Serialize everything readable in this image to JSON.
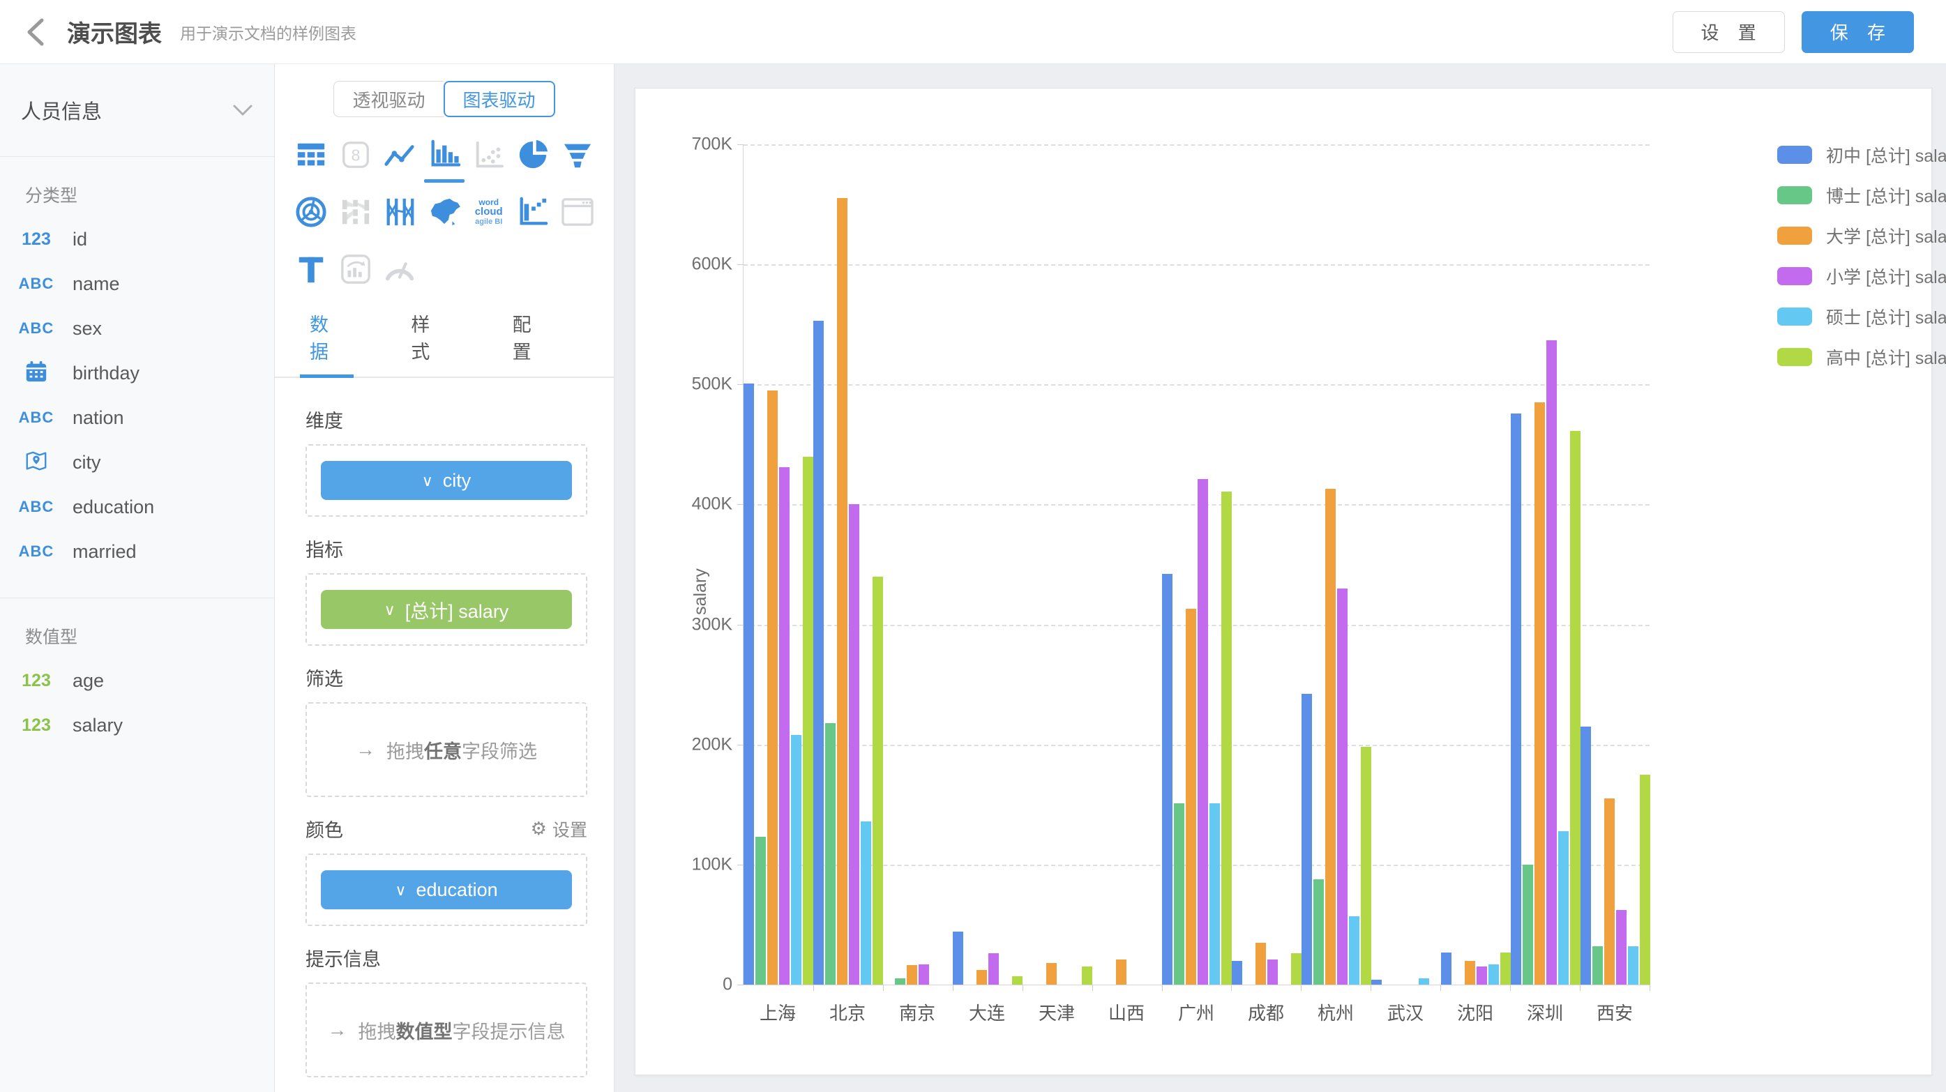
{
  "header": {
    "title": "演示图表",
    "subtitle": "用于演示文档的样例图表",
    "settings_label": "设 置",
    "save_label": "保 存"
  },
  "sidebar": {
    "dataset_name": "人员信息",
    "groups": [
      {
        "label": "分类型",
        "icon_color": "blue",
        "items": [
          {
            "type": "number",
            "icon_label": "123",
            "label": "id"
          },
          {
            "type": "string",
            "icon_label": "ABC",
            "label": "name"
          },
          {
            "type": "string",
            "icon_label": "ABC",
            "label": "sex"
          },
          {
            "type": "date",
            "icon_label": "calendar",
            "label": "birthday"
          },
          {
            "type": "string",
            "icon_label": "ABC",
            "label": "nation"
          },
          {
            "type": "geo",
            "icon_label": "map",
            "label": "city"
          },
          {
            "type": "string",
            "icon_label": "ABC",
            "label": "education"
          },
          {
            "type": "string",
            "icon_label": "ABC",
            "label": "married"
          }
        ]
      },
      {
        "label": "数值型",
        "icon_color": "green",
        "items": [
          {
            "type": "number",
            "icon_label": "123",
            "label": "age"
          },
          {
            "type": "number",
            "icon_label": "123",
            "label": "salary"
          }
        ]
      }
    ]
  },
  "panel": {
    "mode_tabs": [
      {
        "label": "透视驱动",
        "active": false
      },
      {
        "label": "图表驱动",
        "active": true
      }
    ],
    "chart_types": [
      {
        "name": "table",
        "state": "normal"
      },
      {
        "name": "number-card",
        "state": "disabled"
      },
      {
        "name": "line-chart",
        "state": "normal"
      },
      {
        "name": "bar-chart",
        "state": "selected"
      },
      {
        "name": "scatter",
        "state": "disabled"
      },
      {
        "name": "pie",
        "state": "normal"
      },
      {
        "name": "funnel",
        "state": "normal"
      },
      {
        "name": "radar",
        "state": "normal"
      },
      {
        "name": "sankey",
        "state": "disabled"
      },
      {
        "name": "parallel",
        "state": "normal"
      },
      {
        "name": "china-map",
        "state": "normal"
      },
      {
        "name": "word-cloud",
        "state": "normal"
      },
      {
        "name": "waterfall",
        "state": "normal"
      },
      {
        "name": "web-page",
        "state": "disabled"
      },
      {
        "name": "text",
        "state": "normal"
      },
      {
        "name": "combo-chart",
        "state": "disabled"
      },
      {
        "name": "gauge",
        "state": "disabled"
      }
    ],
    "tabs": [
      {
        "label": "数据",
        "active": true
      },
      {
        "label": "样式",
        "active": false
      },
      {
        "label": "配置",
        "active": false
      }
    ],
    "sections": {
      "dimension": {
        "label": "维度",
        "pill": "city",
        "pill_color": "blue"
      },
      "measure": {
        "label": "指标",
        "pill": "[总计] salary",
        "pill_color": "green"
      },
      "filter": {
        "label": "筛选",
        "hint_prefix": "拖拽",
        "hint_bold": "任意",
        "hint_suffix": "字段筛选"
      },
      "color": {
        "label": "颜色",
        "action_label": "设置",
        "pill": "education",
        "pill_color": "blue"
      },
      "tooltip": {
        "label": "提示信息",
        "hint_prefix": "拖拽",
        "hint_bold": "数值型",
        "hint_suffix": "字段提示信息"
      }
    },
    "icons": {
      "chevron_down": "∨",
      "drag_arrow": "→",
      "gear": "⚙"
    }
  },
  "chart_data": {
    "type": "bar",
    "title": "",
    "xlabel": "",
    "ylabel": "salary",
    "ylim": [
      0,
      700000
    ],
    "ytick_labels": [
      "700K",
      "600K",
      "500K",
      "400K",
      "300K",
      "200K",
      "100K",
      "0"
    ],
    "grid": "horizontal-dashed",
    "legend_position": "top-right",
    "categories": [
      "上海",
      "北京",
      "南京",
      "大连",
      "天津",
      "山西",
      "广州",
      "成都",
      "杭州",
      "武汉",
      "沈阳",
      "深圳",
      "西安"
    ],
    "series": [
      {
        "name": "初中 [总计] salary",
        "color": "#5B8FE8",
        "values": [
          501000,
          553000,
          0,
          44000,
          0,
          0,
          342000,
          20000,
          242000,
          4000,
          27000,
          476000,
          215000
        ]
      },
      {
        "name": "博士 [总计] salary",
        "color": "#67C786",
        "values": [
          123000,
          218000,
          5000,
          0,
          0,
          0,
          151000,
          0,
          88000,
          0,
          0,
          100000,
          32000
        ]
      },
      {
        "name": "大学 [总计] salary",
        "color": "#F0A03C",
        "values": [
          495000,
          655000,
          16000,
          12000,
          18000,
          21000,
          313000,
          35000,
          413000,
          0,
          20000,
          485000,
          155000
        ]
      },
      {
        "name": "小学 [总计] salary",
        "color": "#C36BEF",
        "values": [
          431000,
          400000,
          17000,
          26000,
          0,
          0,
          421000,
          21000,
          330000,
          0,
          15000,
          537000,
          62000
        ]
      },
      {
        "name": "硕士 [总计] salary",
        "color": "#63C9F2",
        "values": [
          208000,
          136000,
          0,
          0,
          0,
          0,
          151000,
          0,
          57000,
          5000,
          17000,
          128000,
          32000
        ]
      },
      {
        "name": "高中 [总计] salary",
        "color": "#B1D943",
        "values": [
          440000,
          340000,
          0,
          7000,
          15000,
          0,
          411000,
          26000,
          198000,
          0,
          27000,
          461000,
          175000
        ]
      }
    ]
  }
}
